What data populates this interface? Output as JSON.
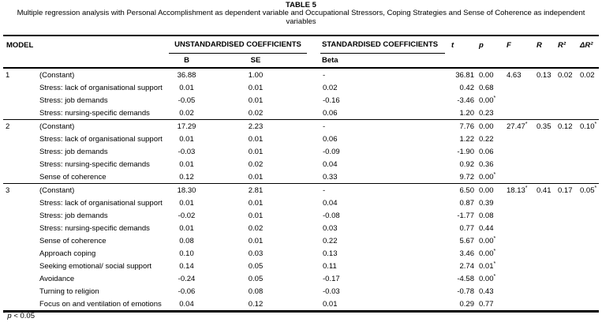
{
  "table_meta": {
    "title": "TABLE 5",
    "subtitle": "Multiple regression analysis with Personal Accomplishment as dependent variable and Occupational Stressors,  Coping Strategies and Sense of Coherence as independent variables",
    "footnote": {
      "marker": "*",
      "symbol": "p",
      "condition": "< 0.05"
    }
  },
  "columns": {
    "model": "MODEL",
    "unstd_group": "UNSTANDARDISED COEFFICIENTS",
    "std_group": "STANDARDISED COEFFICIENTS",
    "B": "B",
    "SE": "SE",
    "beta": "Beta",
    "t": "t",
    "p": "p",
    "F": "F",
    "R": "R",
    "R2": "R²",
    "dR2": "ΔR²"
  },
  "models": [
    {
      "model": "1",
      "rows": [
        {
          "predictor": "(Constant)",
          "B": "36.88",
          "SE": "1.00",
          "beta": "-",
          "t": "36.81",
          "p": "0.00",
          "F": "4.63",
          "R": "0.13",
          "R2": "0.02",
          "dR2": "0.02"
        },
        {
          "predictor": "Stress: lack of organisational support",
          "B": "0.01",
          "SE": "0.01",
          "beta": "0.02",
          "t": "0.42",
          "p": "0.68",
          "F": "",
          "R": "",
          "R2": "",
          "dR2": ""
        },
        {
          "predictor": "Stress: job demands",
          "B": "-0.05",
          "SE": "0.01",
          "beta": "-0.16",
          "t": "-3.46",
          "p": "0.00*",
          "F": "",
          "R": "",
          "R2": "",
          "dR2": ""
        },
        {
          "predictor": "Stress: nursing-specific demands",
          "B": "0.02",
          "SE": "0.02",
          "beta": "0.06",
          "t": "1.20",
          "p": "0.23",
          "F": "",
          "R": "",
          "R2": "",
          "dR2": ""
        }
      ]
    },
    {
      "model": "2",
      "rows": [
        {
          "predictor": "(Constant)",
          "B": "17.29",
          "SE": "2.23",
          "beta": "-",
          "t": "7.76",
          "p": "0.00",
          "F": "27.47*",
          "R": "0.35",
          "R2": "0.12",
          "dR2": "0.10*"
        },
        {
          "predictor": "Stress: lack of organisational support",
          "B": "0.01",
          "SE": "0.01",
          "beta": "0.06",
          "t": "1.22",
          "p": "0.22",
          "F": "",
          "R": "",
          "R2": "",
          "dR2": ""
        },
        {
          "predictor": "Stress: job demands",
          "B": "-0.03",
          "SE": "0.01",
          "beta": "-0.09",
          "t": "-1.90",
          "p": "0.06",
          "F": "",
          "R": "",
          "R2": "",
          "dR2": ""
        },
        {
          "predictor": "Stress: nursing-specific demands",
          "B": "0.01",
          "SE": "0.02",
          "beta": "0.04",
          "t": "0.92",
          "p": "0.36",
          "F": "",
          "R": "",
          "R2": "",
          "dR2": ""
        },
        {
          "predictor": "Sense of coherence",
          "B": "0.12",
          "SE": "0.01",
          "beta": "0.33",
          "t": "9.72",
          "p": "0.00*",
          "F": "",
          "R": "",
          "R2": "",
          "dR2": ""
        }
      ]
    },
    {
      "model": "3",
      "rows": [
        {
          "predictor": "(Constant)",
          "B": "18.30",
          "SE": "2.81",
          "beta": "-",
          "t": "6.50",
          "p": "0.00",
          "F": "18.13*",
          "R": "0.41",
          "R2": "0.17",
          "dR2": "0.05*"
        },
        {
          "predictor": "Stress: lack of organisational support",
          "B": "0.01",
          "SE": "0.01",
          "beta": "0.04",
          "t": "0.87",
          "p": "0.39",
          "F": "",
          "R": "",
          "R2": "",
          "dR2": ""
        },
        {
          "predictor": "Stress: job demands",
          "B": "-0.02",
          "SE": "0.01",
          "beta": "-0.08",
          "t": "-1.77",
          "p": "0.08",
          "F": "",
          "R": "",
          "R2": "",
          "dR2": ""
        },
        {
          "predictor": "Stress: nursing-specific demands",
          "B": "0.01",
          "SE": "0.02",
          "beta": "0.03",
          "t": "0.77",
          "p": "0.44",
          "F": "",
          "R": "",
          "R2": "",
          "dR2": ""
        },
        {
          "predictor": "Sense of coherence",
          "B": "0.08",
          "SE": "0.01",
          "beta": "0.22",
          "t": "5.67",
          "p": "0.00*",
          "F": "",
          "R": "",
          "R2": "",
          "dR2": ""
        },
        {
          "predictor": "Approach coping",
          "B": "0.10",
          "SE": "0.03",
          "beta": "0.13",
          "t": "3.46",
          "p": "0.00*",
          "F": "",
          "R": "",
          "R2": "",
          "dR2": ""
        },
        {
          "predictor": "Seeking emotional/ social support",
          "B": "0.14",
          "SE": "0.05",
          "beta": "0.11",
          "t": "2.74",
          "p": "0.01*",
          "F": "",
          "R": "",
          "R2": "",
          "dR2": ""
        },
        {
          "predictor": "Avoidance",
          "B": "-0.24",
          "SE": "0.05",
          "beta": "-0.17",
          "t": "-4.58",
          "p": "0.00*",
          "F": "",
          "R": "",
          "R2": "",
          "dR2": ""
        },
        {
          "predictor": "Turning to religion",
          "B": "-0.06",
          "SE": "0.08",
          "beta": "-0.03",
          "t": "-0.78",
          "p": "0.43",
          "F": "",
          "R": "",
          "R2": "",
          "dR2": ""
        },
        {
          "predictor": "Focus on and ventilation of emotions",
          "B": "0.04",
          "SE": "0.12",
          "beta": "0.01",
          "t": "0.29",
          "p": "0.77",
          "F": "",
          "R": "",
          "R2": "",
          "dR2": ""
        }
      ]
    }
  ]
}
